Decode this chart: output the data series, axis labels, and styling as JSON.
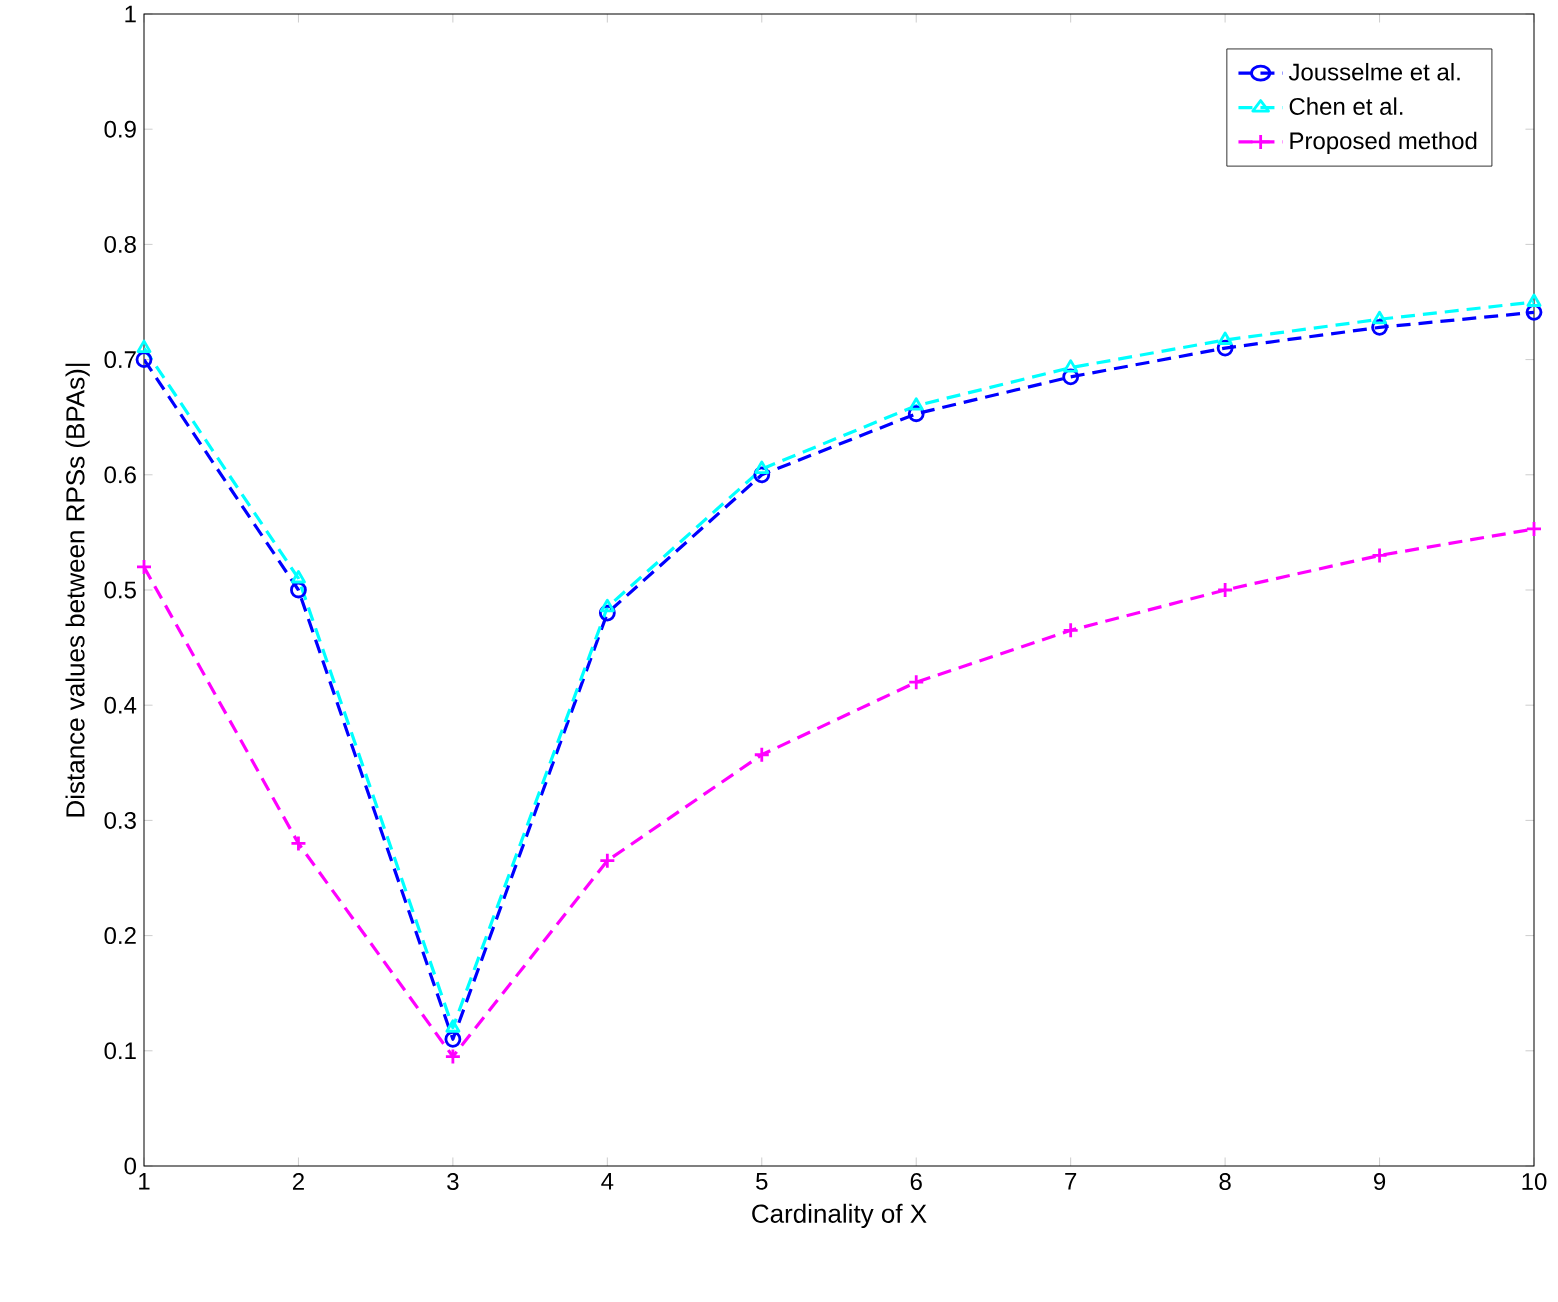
{
  "chart_data": {
    "type": "line",
    "xlabel": "Cardinality of X",
    "ylabel": "Distance values between RPSs (BPAs)|",
    "x": [
      1,
      2,
      3,
      4,
      5,
      6,
      7,
      8,
      9,
      10
    ],
    "series": [
      {
        "name": "Jousselme et al.",
        "color": "#0000ff",
        "marker": "circle",
        "values": [
          0.7,
          0.5,
          0.11,
          0.48,
          0.6,
          0.653,
          0.685,
          0.71,
          0.728,
          0.741
        ]
      },
      {
        "name": "Chen et al.",
        "color": "#00ffff",
        "marker": "triangle",
        "values": [
          0.71,
          0.51,
          0.12,
          0.485,
          0.605,
          0.66,
          0.693,
          0.717,
          0.735,
          0.75
        ]
      },
      {
        "name": "Proposed method",
        "color": "#ff00ff",
        "marker": "cross",
        "values": [
          0.52,
          0.28,
          0.095,
          0.265,
          0.357,
          0.42,
          0.465,
          0.5,
          0.53,
          0.553
        ]
      }
    ],
    "line_style": "dashed",
    "xlim": [
      1,
      10
    ],
    "xticks": [
      1,
      2,
      3,
      4,
      5,
      6,
      7,
      8,
      9,
      10
    ],
    "ylim": [
      0,
      1
    ],
    "yticks": [
      0,
      0.1,
      0.2,
      0.3,
      0.4,
      0.5,
      0.6,
      0.7,
      0.8,
      0.9,
      1
    ],
    "grid": false,
    "legend": "top right"
  }
}
